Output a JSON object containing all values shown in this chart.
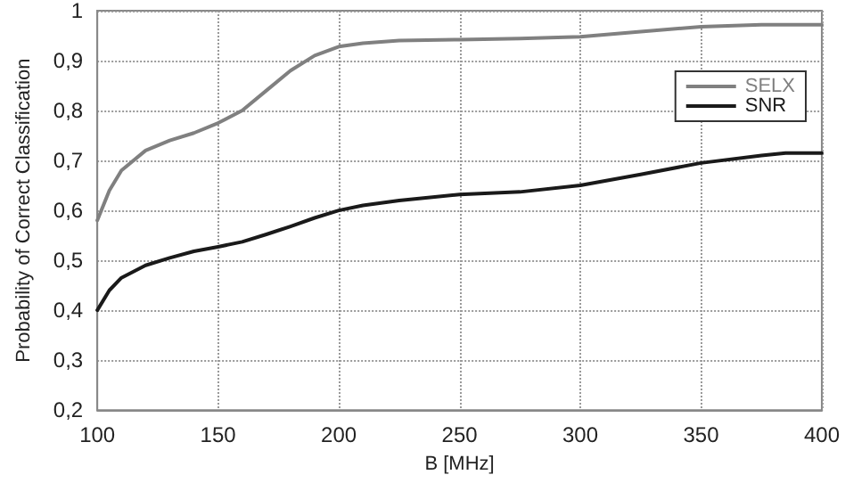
{
  "chart_data": {
    "type": "line",
    "xlabel": "B [MHz]",
    "ylabel": "Probability of Correct Classification",
    "xlim": [
      100,
      400
    ],
    "xticks": [
      100,
      150,
      200,
      250,
      300,
      350,
      400
    ],
    "ylim": [
      0.2,
      1
    ],
    "yticks": [
      {
        "value": 0.2,
        "label": "0,2"
      },
      {
        "value": 0.3,
        "label": "0,3"
      },
      {
        "value": 0.4,
        "label": "0,4"
      },
      {
        "value": 0.5,
        "label": "0,5"
      },
      {
        "value": 0.6,
        "label": "0,6"
      },
      {
        "value": 0.7,
        "label": "0,7"
      },
      {
        "value": 0.8,
        "label": "0,8"
      },
      {
        "value": 0.9,
        "label": "0,9"
      },
      {
        "value": 1,
        "label": "1"
      }
    ],
    "x": [
      100,
      105,
      110,
      120,
      130,
      140,
      150,
      160,
      170,
      180,
      190,
      200,
      210,
      225,
      250,
      275,
      300,
      325,
      350,
      375,
      385,
      400
    ],
    "series": [
      {
        "name": "SELX",
        "color": "#808080",
        "values": [
          0.58,
          0.64,
          0.68,
          0.72,
          0.74,
          0.755,
          0.775,
          0.8,
          0.84,
          0.88,
          0.91,
          0.928,
          0.935,
          0.94,
          0.942,
          0.944,
          0.948,
          0.958,
          0.968,
          0.972,
          0.972,
          0.972
        ]
      },
      {
        "name": "SNR",
        "color": "#1a1a1a",
        "values": [
          0.4,
          0.44,
          0.465,
          0.49,
          0.505,
          0.518,
          0.527,
          0.537,
          0.552,
          0.568,
          0.585,
          0.6,
          0.61,
          0.62,
          0.632,
          0.637,
          0.65,
          0.672,
          0.695,
          0.71,
          0.715,
          0.715
        ]
      }
    ],
    "grid": true,
    "legend": "top right",
    "marker": "none",
    "line_style": "solid"
  }
}
